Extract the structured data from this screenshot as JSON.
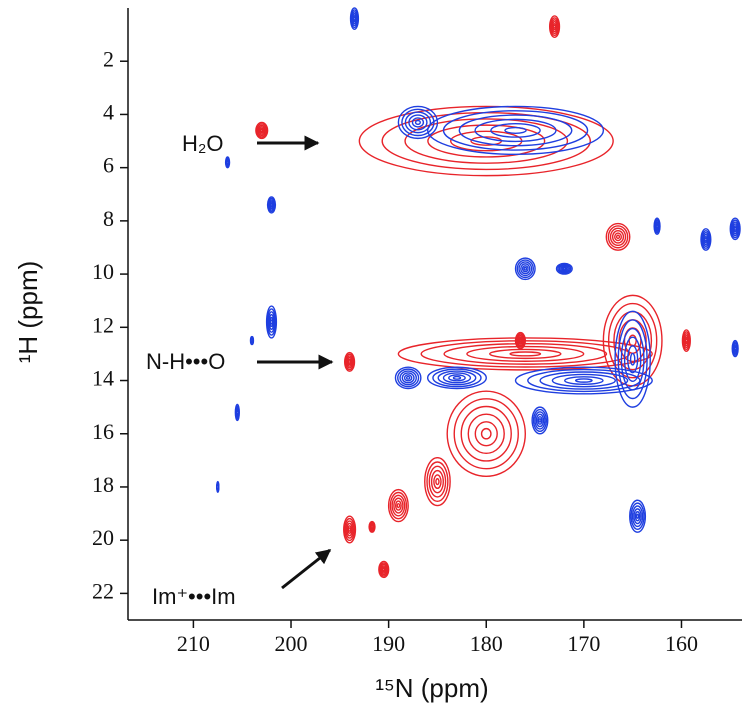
{
  "chart_data": {
    "type": "contour",
    "xlabel": "¹⁵N (ppm)",
    "ylabel": "¹H (ppm)",
    "xlim": [
      216.7,
      153.8
    ],
    "ylim": [
      23,
      0
    ],
    "xticks": [
      210,
      200,
      190,
      180,
      170,
      160
    ],
    "yticks": [
      2,
      4,
      6,
      8,
      10,
      12,
      14,
      16,
      18,
      20,
      22
    ],
    "series": [
      {
        "color": "#e8242a",
        "peaks": [
          {
            "x": 180,
            "y": 5.0,
            "rx": 13,
            "ry": 1.3
          },
          {
            "x": 203,
            "y": 4.6,
            "rx": 0.6,
            "ry": 0.3
          },
          {
            "x": 173,
            "y": 0.7,
            "rx": 0.5,
            "ry": 0.4
          },
          {
            "x": 166.5,
            "y": 8.6,
            "rx": 1.2,
            "ry": 0.5
          },
          {
            "x": 159.5,
            "y": 12.5,
            "rx": 0.4,
            "ry": 0.4
          },
          {
            "x": 176.5,
            "y": 12.5,
            "rx": 0.5,
            "ry": 0.3
          },
          {
            "x": 176,
            "y": 13.0,
            "rx": 13,
            "ry": 0.6
          },
          {
            "x": 165,
            "y": 12.5,
            "rx": 3,
            "ry": 1.7
          },
          {
            "x": 194,
            "y": 13.3,
            "rx": 0.5,
            "ry": 0.35
          },
          {
            "x": 180,
            "y": 16,
            "rx": 4,
            "ry": 1.6
          },
          {
            "x": 185,
            "y": 17.8,
            "rx": 1.3,
            "ry": 0.9
          },
          {
            "x": 189,
            "y": 18.7,
            "rx": 1,
            "ry": 0.6
          },
          {
            "x": 191.7,
            "y": 19.5,
            "rx": 0.3,
            "ry": 0.2
          },
          {
            "x": 194,
            "y": 19.6,
            "rx": 0.6,
            "ry": 0.5
          },
          {
            "x": 190.5,
            "y": 21.1,
            "rx": 0.5,
            "ry": 0.3
          }
        ]
      },
      {
        "color": "#1f3fe0",
        "peaks": [
          {
            "x": 177,
            "y": 4.6,
            "rx": 9,
            "ry": 0.9
          },
          {
            "x": 187,
            "y": 4.3,
            "rx": 2,
            "ry": 0.6
          },
          {
            "x": 193.5,
            "y": 0.4,
            "rx": 0.4,
            "ry": 0.4
          },
          {
            "x": 206.5,
            "y": 5.8,
            "rx": 0.2,
            "ry": 0.2
          },
          {
            "x": 202,
            "y": 7.4,
            "rx": 0.4,
            "ry": 0.3
          },
          {
            "x": 202,
            "y": 11.8,
            "rx": 0.5,
            "ry": 0.6
          },
          {
            "x": 204,
            "y": 12.5,
            "rx": 0.15,
            "ry": 0.15
          },
          {
            "x": 205.5,
            "y": 15.2,
            "rx": 0.2,
            "ry": 0.3
          },
          {
            "x": 207.5,
            "y": 18,
            "rx": 0.1,
            "ry": 0.2
          },
          {
            "x": 176,
            "y": 9.8,
            "rx": 1,
            "ry": 0.4
          },
          {
            "x": 172,
            "y": 9.8,
            "rx": 0.8,
            "ry": 0.2
          },
          {
            "x": 162.5,
            "y": 8.2,
            "rx": 0.3,
            "ry": 0.3
          },
          {
            "x": 157.5,
            "y": 8.7,
            "rx": 0.5,
            "ry": 0.4
          },
          {
            "x": 154.5,
            "y": 8.3,
            "rx": 0.5,
            "ry": 0.4
          },
          {
            "x": 154.5,
            "y": 12.8,
            "rx": 0.3,
            "ry": 0.3
          },
          {
            "x": 164.5,
            "y": 19.1,
            "rx": 0.8,
            "ry": 0.6
          },
          {
            "x": 170,
            "y": 14.0,
            "rx": 7,
            "ry": 0.5
          },
          {
            "x": 165,
            "y": 13.2,
            "rx": 1.8,
            "ry": 1.8
          },
          {
            "x": 183,
            "y": 13.9,
            "rx": 3,
            "ry": 0.4
          },
          {
            "x": 188,
            "y": 13.9,
            "rx": 1.3,
            "ry": 0.4
          },
          {
            "x": 174.5,
            "y": 15.5,
            "rx": 0.8,
            "ry": 0.5
          }
        ]
      }
    ],
    "annotations": [
      {
        "text": "H₂O"
      },
      {
        "text": "N-H•••O"
      },
      {
        "text": "Im⁺•••Im"
      }
    ]
  }
}
